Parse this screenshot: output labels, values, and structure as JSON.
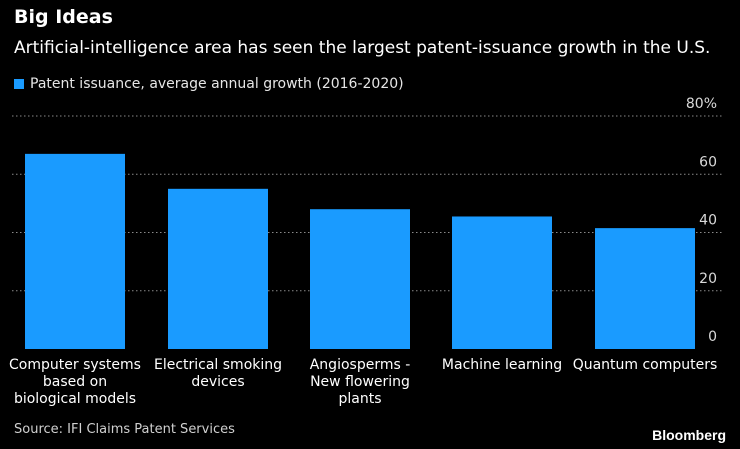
{
  "header": {
    "title": "Big Ideas",
    "subtitle": "Artificial-intelligence area has seen the largest patent-issuance growth in the U.S."
  },
  "legend": {
    "label": "Patent issuance, average annual growth (2016-2020)"
  },
  "colors": {
    "bar": "#1a9bff",
    "grid": "#8a8a8a",
    "background": "#000000"
  },
  "chart_data": {
    "type": "bar",
    "title": "Big Ideas",
    "xlabel": "",
    "ylabel": "",
    "ylim": [
      0,
      80
    ],
    "yticks": [
      {
        "value": 0,
        "label": "0"
      },
      {
        "value": 20,
        "label": "20"
      },
      {
        "value": 40,
        "label": "40"
      },
      {
        "value": 60,
        "label": "60"
      },
      {
        "value": 80,
        "label": "80%"
      }
    ],
    "categories": [
      [
        "Computer systems",
        "based on",
        "biological models"
      ],
      [
        "Electrical smoking",
        "devices"
      ],
      [
        "Angiosperms -",
        "New flowering",
        "plants"
      ],
      [
        "Machine learning"
      ],
      [
        "Quantum computers"
      ]
    ],
    "series": [
      {
        "name": "Patent issuance, average annual growth (2016-2020)",
        "values": [
          67,
          55,
          48,
          45.5,
          41.5
        ]
      }
    ]
  },
  "footer": {
    "source": "Source: IFI Claims Patent Services",
    "brand": "Bloomberg"
  }
}
